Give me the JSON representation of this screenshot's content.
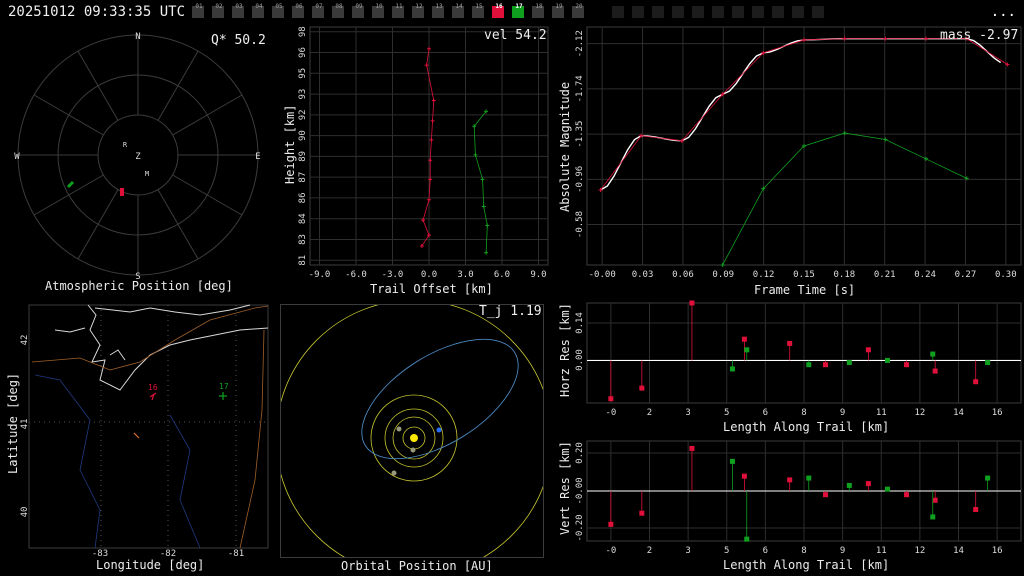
{
  "header": {
    "timestamp": "20251012 09:33:35 UTC",
    "menu_label": "...",
    "camera_chips": [
      "01",
      "02",
      "03",
      "04",
      "05",
      "06",
      "07",
      "08",
      "09",
      "10",
      "11",
      "12",
      "13",
      "14",
      "15",
      "16",
      "17",
      "18",
      "19",
      "20"
    ],
    "active_chips": {
      "16": "#e0103a",
      "17": "#10a020"
    },
    "empty_chip_count": 11
  },
  "panels": {
    "atmos": {
      "readout": "Q* 50.2",
      "xlabel": "Atmospheric Position [deg]",
      "compass": {
        "n": "N",
        "s": "S",
        "e": "E",
        "w": "W",
        "z": "Z",
        "r": "R",
        "m": "M"
      }
    },
    "trail": {
      "readout": "vel 54.2",
      "xlabel": "Trail Offset [km]",
      "ylabel": "Height [km]",
      "xticks": [
        "-9.0",
        "-6.0",
        "-3.0",
        "0.0",
        "3.0",
        "6.0",
        "9.0"
      ],
      "yticks": [
        "81",
        "83",
        "84",
        "86",
        "87",
        "89",
        "90",
        "92",
        "93",
        "95",
        "96",
        "98"
      ]
    },
    "mag": {
      "readout": "mass -2.97",
      "xlabel": "Frame Time [s]",
      "ylabel": "Absolute Magnitude",
      "xticks": [
        "-0.00",
        "0.03",
        "0.06",
        "0.09",
        "0.12",
        "0.15",
        "0.18",
        "0.21",
        "0.24",
        "0.27",
        "0.30"
      ],
      "yticks": [
        "-2.12",
        "-1.74",
        "-1.35",
        "-0.96",
        "-0.58"
      ]
    },
    "map": {
      "xlabel": "Longitude [deg]",
      "ylabel": "Latitude [deg]",
      "xticks": [
        "-83",
        "-82",
        "-81"
      ],
      "yticks": [
        "42",
        "41",
        "40"
      ],
      "site_labels": {
        "s16": "16",
        "s17": "17"
      }
    },
    "orbit": {
      "readout": "T_j 1.19",
      "xlabel": "Orbital Position [AU]"
    },
    "hres": {
      "xlabel": "Length Along Trail [km]",
      "ylabel": "Horz Res [km]",
      "yticks": [
        "0.14",
        "0.00"
      ]
    },
    "vres": {
      "xlabel": "Length Along Trail [km]",
      "ylabel": "Vert Res [km]",
      "yticks": [
        "0.20",
        "-0.00",
        "-0.20"
      ]
    },
    "res_xticks": [
      "-0",
      "2",
      "3",
      "5",
      "6",
      "8",
      "9",
      "11",
      "12",
      "14",
      "16"
    ]
  },
  "colors": {
    "cam16": "#e0103a",
    "cam17": "#10a020",
    "grid": "#3c3c3c",
    "fit": "#ffffff"
  },
  "chart_data": [
    {
      "type": "line",
      "title": "",
      "xlabel": "Trail Offset [km]",
      "ylabel": "Height [km]",
      "xlim": [
        -10,
        10
      ],
      "ylim": [
        81,
        98.5
      ],
      "series": [
        {
          "name": "16",
          "color": "#e0103a",
          "x": [
            -0.6,
            0.0,
            -0.5,
            0.0,
            0.1,
            0.1,
            0.2,
            0.3,
            0.4,
            -0.2,
            0.0
          ],
          "y": [
            82.4,
            83.2,
            84.3,
            85.8,
            87.3,
            88.7,
            90.2,
            91.6,
            93.1,
            95.7,
            96.9
          ]
        },
        {
          "name": "17",
          "color": "#10a020",
          "x": [
            4.8,
            4.9,
            4.6,
            4.5,
            3.9,
            3.8,
            4.8
          ],
          "y": [
            81.9,
            83.9,
            85.3,
            87.3,
            89.1,
            91.2,
            92.3
          ]
        }
      ]
    },
    {
      "type": "line",
      "title": "",
      "xlabel": "Frame Time [s]",
      "ylabel": "Absolute Magnitude",
      "xlim": [
        -0.01,
        0.31
      ],
      "ylim": [
        -0.38,
        -2.22
      ],
      "series": [
        {
          "name": "16",
          "color": "#e0103a",
          "x": [
            0.0,
            0.03,
            0.06,
            0.09,
            0.12,
            0.15,
            0.18,
            0.21,
            0.24,
            0.27,
            0.3
          ],
          "y": [
            -0.96,
            -1.38,
            -1.34,
            -1.7,
            -2.02,
            -2.12,
            -2.13,
            -2.13,
            -2.13,
            -2.13,
            -1.93
          ]
        },
        {
          "name": "17",
          "color": "#10a020",
          "x": [
            0.09,
            0.12,
            0.15,
            0.18,
            0.21,
            0.24,
            0.27
          ],
          "y": [
            -0.38,
            -0.97,
            -1.3,
            -1.4,
            -1.35,
            -1.2,
            -1.05
          ]
        }
      ]
    },
    {
      "type": "scatter",
      "title": "",
      "xlabel": "Length Along Trail [km]",
      "ylabel": "Horz Res [km]",
      "xlim": [
        -1,
        17.2
      ],
      "ylim": [
        -0.2,
        0.27
      ],
      "series": [
        {
          "name": "16",
          "color": "#e0103a",
          "x": [
            0.0,
            1.3,
            3.4,
            5.6,
            7.5,
            9.0,
            10.8,
            12.4,
            13.6,
            15.3
          ],
          "y": [
            -0.18,
            -0.13,
            0.27,
            0.1,
            0.08,
            -0.02,
            0.05,
            -0.02,
            -0.05,
            -0.1
          ]
        },
        {
          "name": "17",
          "color": "#10a020",
          "x": [
            5.1,
            5.7,
            8.3,
            10.0,
            11.6,
            13.5,
            15.8
          ],
          "y": [
            -0.04,
            0.05,
            -0.02,
            -0.01,
            0.0,
            0.03,
            -0.01
          ]
        }
      ]
    },
    {
      "type": "scatter",
      "title": "",
      "xlabel": "Length Along Trail [km]",
      "ylabel": "Vert Res [km]",
      "xlim": [
        -1,
        17.2
      ],
      "ylim": [
        -0.27,
        0.27
      ],
      "series": [
        {
          "name": "16",
          "color": "#e0103a",
          "x": [
            0.0,
            1.3,
            3.4,
            5.6,
            7.5,
            9.0,
            10.8,
            12.4,
            13.6,
            15.3
          ],
          "y": [
            -0.18,
            -0.12,
            0.23,
            0.08,
            0.06,
            -0.02,
            0.04,
            -0.02,
            -0.05,
            -0.1
          ]
        },
        {
          "name": "17",
          "color": "#10a020",
          "x": [
            5.1,
            5.7,
            8.3,
            10.0,
            11.6,
            13.5,
            15.8
          ],
          "y": [
            0.16,
            -0.26,
            0.07,
            0.03,
            0.01,
            -0.14,
            0.07
          ]
        }
      ]
    }
  ]
}
